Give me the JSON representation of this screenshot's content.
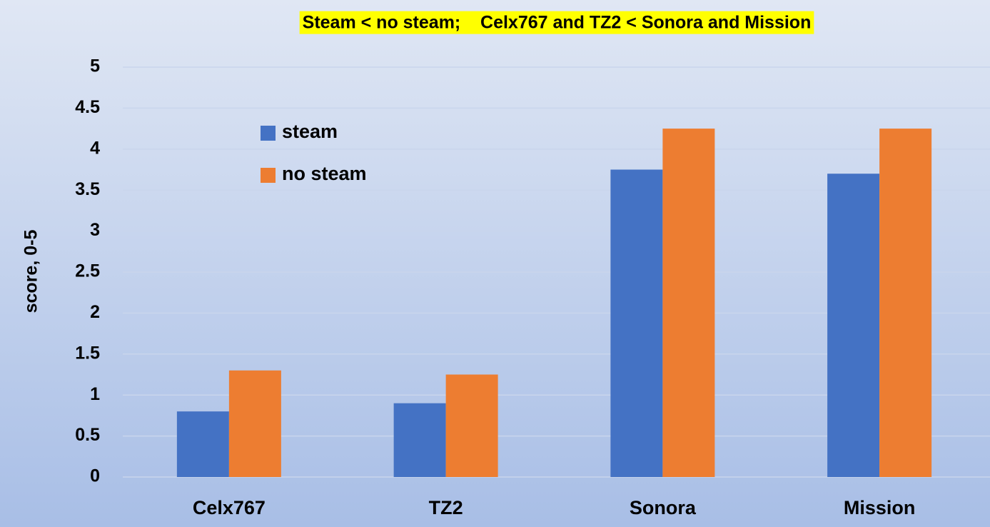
{
  "chart_data": {
    "type": "bar",
    "title": "Steam < no steam;    Celx767 and TZ2 < Sonora and Mission",
    "y_label": "score, 0-5",
    "categories": [
      "Celx767",
      "TZ2",
      "Sonora",
      "Mission"
    ],
    "series": [
      {
        "name": "steam",
        "color": "#4472c4",
        "values": [
          0.8,
          0.9,
          3.75,
          3.7
        ]
      },
      {
        "name": "no steam",
        "color": "#ed7d31",
        "values": [
          1.3,
          1.25,
          4.25,
          4.25
        ]
      }
    ],
    "ylim": [
      0,
      5
    ],
    "yticks": [
      0,
      0.5,
      1,
      1.5,
      2,
      2.5,
      3,
      3.5,
      4,
      4.5,
      5
    ],
    "grid": true,
    "legend": "upper left",
    "title_highlight": "#ffff00"
  }
}
